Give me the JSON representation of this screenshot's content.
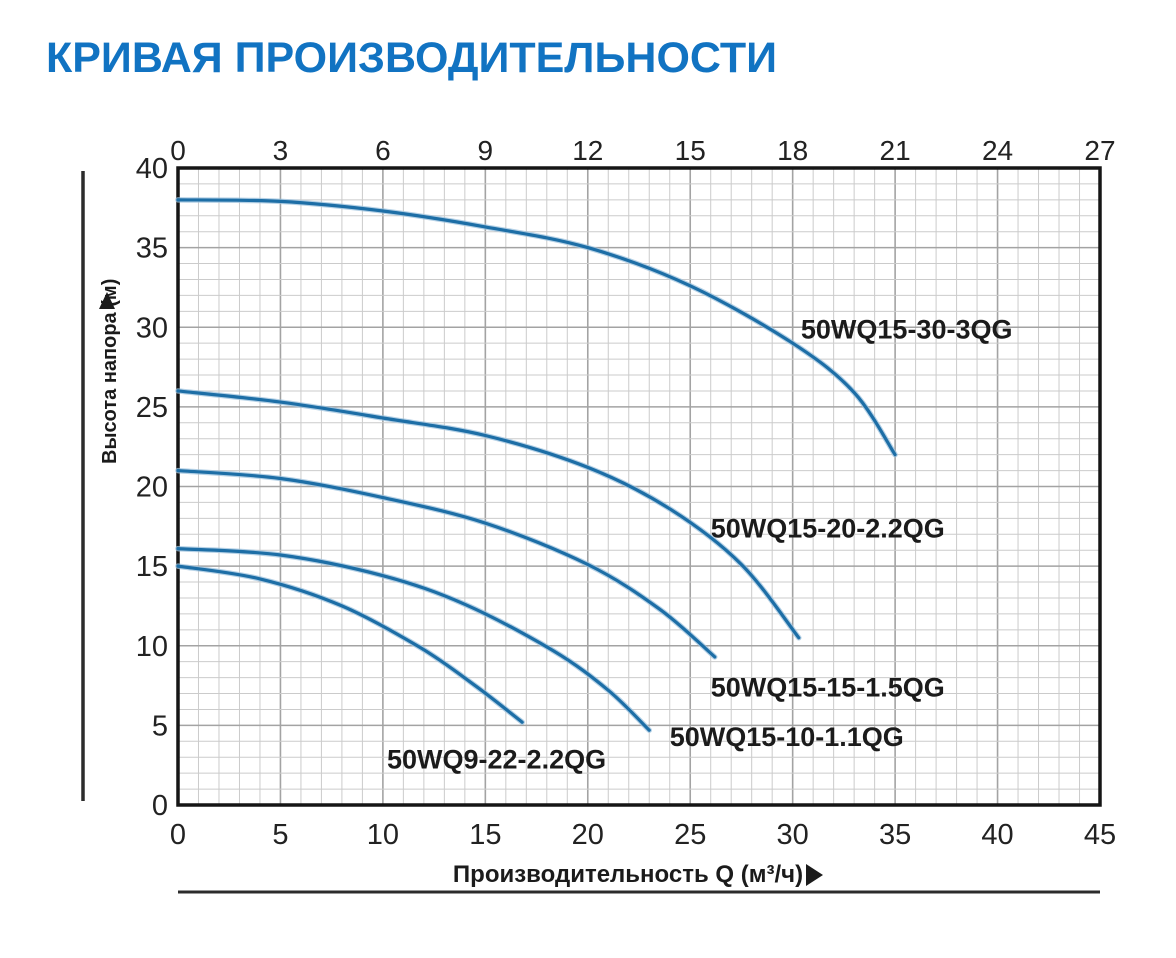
{
  "page": {
    "title": "КРИВАЯ ПРОИЗВОДИТЕЛЬНОСТИ",
    "title_color": "#1173c2"
  },
  "chart_data": {
    "type": "line",
    "title": "КРИВАЯ ПРОИЗВОДИТЕЛЬНОСТИ",
    "xlabel": "Производительность Q (м³/ч)",
    "ylabel": "Высота напора (м)",
    "x_axis_bottom": {
      "lim": [
        0,
        45
      ],
      "ticks": [
        "0",
        "5",
        "10",
        "15",
        "20",
        "25",
        "30",
        "35",
        "40",
        "45"
      ]
    },
    "x_axis_top": {
      "lim": [
        0,
        27
      ],
      "ticks": [
        "0",
        "3",
        "6",
        "9",
        "12",
        "15",
        "18",
        "21",
        "24",
        "27"
      ]
    },
    "y_axis": {
      "lim": [
        0,
        40
      ],
      "ticks": [
        "0",
        "5",
        "10",
        "15",
        "20",
        "25",
        "30",
        "35",
        "40"
      ]
    },
    "grid": {
      "on": true,
      "minor_step": 1,
      "major_step": 5,
      "minor_color": "#cbcbcb",
      "major_color": "#a3a3a3"
    },
    "legend_position": "inline-labels",
    "curve_color": "#1d6ea6",
    "curve_halo_color": "#9cc2dd",
    "series": [
      {
        "name": "50WQ15-30-3QG",
        "points": [
          [
            0,
            38
          ],
          [
            5,
            37.9
          ],
          [
            10,
            37.3
          ],
          [
            15,
            36.3
          ],
          [
            20,
            35
          ],
          [
            25,
            32.6
          ],
          [
            30,
            29
          ],
          [
            33,
            25.9
          ],
          [
            35,
            22
          ]
        ],
        "label": {
          "q": 30.4,
          "h": 29.3,
          "anchor": "start"
        }
      },
      {
        "name": "50WQ15-20-2.2QG",
        "points": [
          [
            0,
            26
          ],
          [
            5,
            25.3
          ],
          [
            10,
            24.3
          ],
          [
            15,
            23.2
          ],
          [
            20,
            21.2
          ],
          [
            24,
            18.6
          ],
          [
            27.5,
            15.1
          ],
          [
            30.3,
            10.5
          ]
        ],
        "label": {
          "q": 26.0,
          "h": 16.8,
          "anchor": "start"
        }
      },
      {
        "name": "50WQ15-15-1.5QG",
        "points": [
          [
            0,
            21
          ],
          [
            5,
            20.5
          ],
          [
            10,
            19.3
          ],
          [
            15,
            17.7
          ],
          [
            20,
            15.1
          ],
          [
            23.5,
            12.3
          ],
          [
            26.2,
            9.3
          ]
        ],
        "label": {
          "q": 26.0,
          "h": 6.8,
          "anchor": "start"
        }
      },
      {
        "name": "50WQ15-10-1.1QG",
        "points": [
          [
            0,
            16.1
          ],
          [
            5,
            15.7
          ],
          [
            10,
            14.4
          ],
          [
            14,
            12.6
          ],
          [
            18.3,
            9.7
          ],
          [
            21,
            7.2
          ],
          [
            23,
            4.7
          ]
        ],
        "label": {
          "q": 24.0,
          "h": 3.7,
          "anchor": "start"
        }
      },
      {
        "name": "50WQ9-22-2.2QG",
        "points": [
          [
            0,
            15
          ],
          [
            4,
            14.2
          ],
          [
            8,
            12.5
          ],
          [
            11.8,
            9.9
          ],
          [
            14.5,
            7.5
          ],
          [
            16.8,
            5.2
          ]
        ],
        "label": {
          "q": 10.2,
          "h": 2.3,
          "anchor": "start"
        }
      }
    ]
  }
}
